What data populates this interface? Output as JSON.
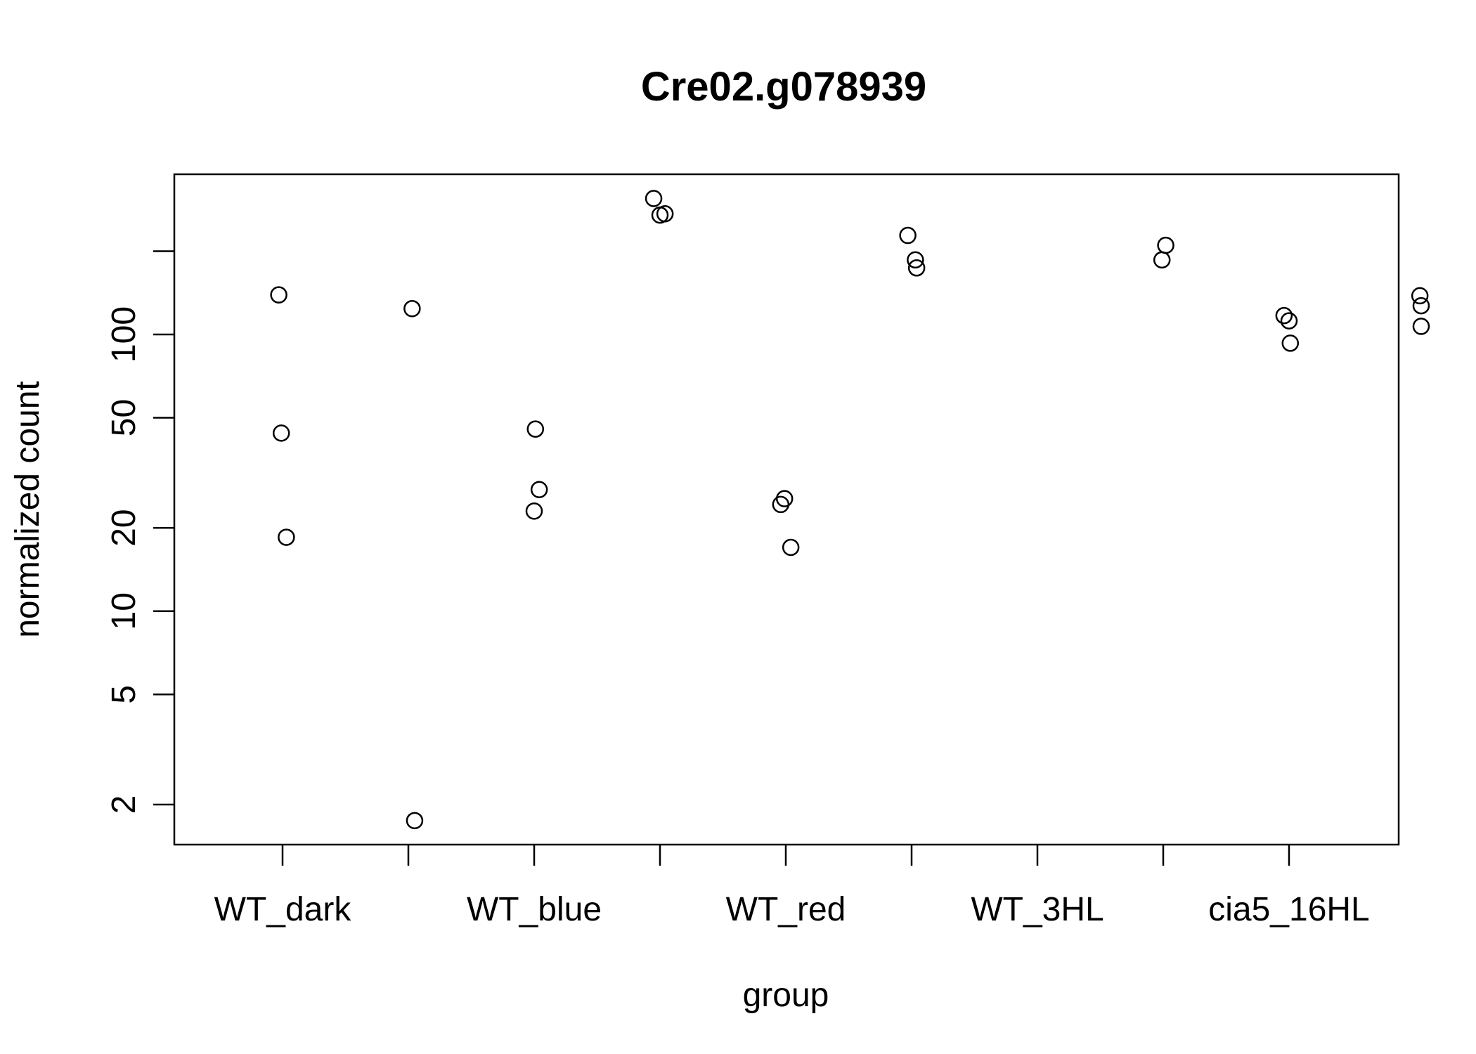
{
  "chart_data": {
    "type": "scatter",
    "title": "Cre02.g078939",
    "xlabel": "group",
    "ylabel": "normalized count",
    "y_scale": "log",
    "ylim": [
      1.6,
      440
    ],
    "grid": false,
    "categories": [
      "WT_dark",
      "",
      "WT_blue",
      "",
      "WT_red",
      "",
      "WT_3HL",
      "",
      "cia5_16HL"
    ],
    "x_tick_labels": [
      "WT_dark",
      "WT_blue",
      "WT_red",
      "WT_3HL",
      "cia5_16HL"
    ],
    "y_ticks": [
      2,
      5,
      10,
      20,
      50,
      100,
      200
    ],
    "y_tick_labels": [
      "2",
      "5",
      "10",
      "20",
      "50",
      "100",
      ""
    ],
    "points": [
      {
        "group": 1,
        "x": 0.97,
        "y": 139
      },
      {
        "group": 1,
        "x": 0.99,
        "y": 44
      },
      {
        "group": 1,
        "x": 1.03,
        "y": 18.5
      },
      {
        "group": 2,
        "x": 2.03,
        "y": 124
      },
      {
        "group": 2,
        "x": 2.05,
        "y": 1.75
      },
      {
        "group": 3,
        "x": 3.01,
        "y": 45.5
      },
      {
        "group": 3,
        "x": 3.04,
        "y": 27.5
      },
      {
        "group": 3,
        "x": 3.0,
        "y": 23
      },
      {
        "group": 4,
        "x": 3.95,
        "y": 310
      },
      {
        "group": 4,
        "x": 4.0,
        "y": 270
      },
      {
        "group": 4,
        "x": 4.04,
        "y": 273
      },
      {
        "group": 5,
        "x": 4.99,
        "y": 25.5
      },
      {
        "group": 5,
        "x": 4.96,
        "y": 24.3
      },
      {
        "group": 5,
        "x": 5.04,
        "y": 17
      },
      {
        "group": 6,
        "x": 5.97,
        "y": 228
      },
      {
        "group": 6,
        "x": 6.03,
        "y": 186
      },
      {
        "group": 6,
        "x": 6.04,
        "y": 174
      },
      {
        "group": 7,
        "x": 8.02,
        "y": 210
      },
      {
        "group": 7,
        "x": 7.99,
        "y": 186
      },
      {
        "group": 8,
        "x": 8.96,
        "y": 117
      },
      {
        "group": 8,
        "x": 9.0,
        "y": 112
      },
      {
        "group": 8,
        "x": 9.01,
        "y": 93
      },
      {
        "group": 9,
        "x": 10.04,
        "y": 138
      },
      {
        "group": 9,
        "x": 10.05,
        "y": 127
      },
      {
        "group": 9,
        "x": 10.05,
        "y": 107
      }
    ]
  }
}
